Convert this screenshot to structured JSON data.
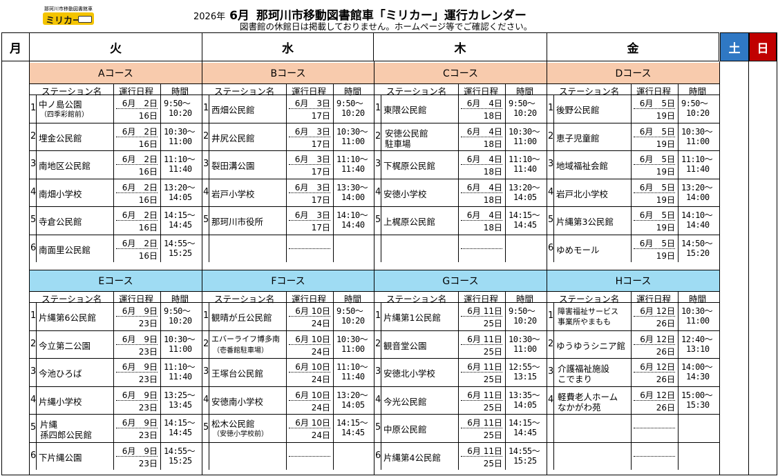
{
  "header": {
    "logo_sub": "那珂川市移動図書館車",
    "logo_main": "ミリカー",
    "year": "2026年",
    "month": "6月",
    "title": "那珂川市移動図書館車「ミリカー」運行カレンダー",
    "subtitle": "図書館の休館日は掲載しておりません。ホームページ等でご確認ください。"
  },
  "days": {
    "mon": "月",
    "tue": "火",
    "wed": "水",
    "thu": "木",
    "fri": "金",
    "sat": "土",
    "sun": "日"
  },
  "colors": {
    "sat": "#2f78c4",
    "sun": "#c00000",
    "top_course": "#f8cbad",
    "bottom_course": "#9fdcf3"
  },
  "labels": {
    "station": "ステーション名",
    "schedule": "運行日程",
    "time": "時間"
  },
  "courses": [
    {
      "name": "Aコース",
      "rows": [
        {
          "no": "1",
          "station": "中ノ島公園",
          "note": "（四季彩館前）",
          "d1": "6月　2日",
          "d2": "16日",
          "t1": "9:50～",
          "t2": "10:20"
        },
        {
          "no": "2",
          "station": "埋金公民館",
          "d1": "6月　2日",
          "d2": "16日",
          "t1": "10:30～",
          "t2": "11:00"
        },
        {
          "no": "3",
          "station": "南地区公民館",
          "d1": "6月　2日",
          "d2": "16日",
          "t1": "11:10～",
          "t2": "11:40"
        },
        {
          "no": "4",
          "station": "南畑小学校",
          "d1": "6月　2日",
          "d2": "16日",
          "t1": "13:20～",
          "t2": "14:05"
        },
        {
          "no": "5",
          "station": "寺倉公民館",
          "d1": "6月　2日",
          "d2": "16日",
          "t1": "14:15～",
          "t2": "14:45"
        },
        {
          "no": "6",
          "station": "南面里公民館",
          "d1": "6月　2日",
          "d2": "16日",
          "t1": "14:55～",
          "t2": "15:25"
        }
      ]
    },
    {
      "name": "Bコース",
      "rows": [
        {
          "no": "1",
          "station": "西畑公民館",
          "d1": "6月　3日",
          "d2": "17日",
          "t1": "9:50～",
          "t2": "10:20"
        },
        {
          "no": "2",
          "station": "井尻公民館",
          "d1": "6月　3日",
          "d2": "17日",
          "t1": "10:30～",
          "t2": "11:00"
        },
        {
          "no": "3",
          "station": "裂田溝公園",
          "d1": "6月　3日",
          "d2": "17日",
          "t1": "11:10～",
          "t2": "11:40"
        },
        {
          "no": "4",
          "station": "岩戸小学校",
          "d1": "6月　3日",
          "d2": "17日",
          "t1": "13:30～",
          "t2": "14:00"
        },
        {
          "no": "5",
          "station": "那珂川市役所",
          "d1": "6月　3日",
          "d2": "17日",
          "t1": "14:10～",
          "t2": "14:40"
        }
      ]
    },
    {
      "name": "Cコース",
      "rows": [
        {
          "no": "1",
          "station": "東隈公民館",
          "d1": "6月　4日",
          "d2": "18日",
          "t1": "9:50～",
          "t2": "10:20"
        },
        {
          "no": "2",
          "station": "安徳公民館",
          "station2": "駐車場",
          "d1": "6月　4日",
          "d2": "18日",
          "t1": "10:30～",
          "t2": "11:00"
        },
        {
          "no": "3",
          "station": "下梶原公民館",
          "d1": "6月　4日",
          "d2": "18日",
          "t1": "11:10～",
          "t2": "11:40"
        },
        {
          "no": "4",
          "station": "安徳小学校",
          "d1": "6月　4日",
          "d2": "18日",
          "t1": "13:20～",
          "t2": "14:05"
        },
        {
          "no": "5",
          "station": "上梶原公民館",
          "d1": "6月　4日",
          "d2": "18日",
          "t1": "14:15～",
          "t2": "14:45"
        }
      ]
    },
    {
      "name": "Dコース",
      "rows": [
        {
          "no": "1",
          "station": "後野公民館",
          "d1": "6月　5日",
          "d2": "19日",
          "t1": "9:50～",
          "t2": "10:20"
        },
        {
          "no": "2",
          "station": "恵子児童館",
          "d1": "6月　5日",
          "d2": "19日",
          "t1": "10:30～",
          "t2": "11:00"
        },
        {
          "no": "3",
          "station": "地域福祉会館",
          "d1": "6月　5日",
          "d2": "19日",
          "t1": "11:10～",
          "t2": "11:40"
        },
        {
          "no": "4",
          "station": "岩戸北小学校",
          "d1": "6月　5日",
          "d2": "19日",
          "t1": "13:20～",
          "t2": "14:00"
        },
        {
          "no": "5",
          "station": "片縄第3公民館",
          "d1": "6月　5日",
          "d2": "19日",
          "t1": "14:10～",
          "t2": "14:40"
        },
        {
          "no": "6",
          "station": "ゆめモール",
          "d1": "6月　5日",
          "d2": "19日",
          "t1": "14:50～",
          "t2": "15:20"
        }
      ]
    },
    {
      "name": "Eコース",
      "rows": [
        {
          "no": "1",
          "station": "片縄第6公民館",
          "d1": "6月　9日",
          "d2": "23日",
          "t1": "9:50～",
          "t2": "10:20"
        },
        {
          "no": "2",
          "station": "今立第二公園",
          "d1": "6月　9日",
          "d2": "23日",
          "t1": "10:30～",
          "t2": "11:00"
        },
        {
          "no": "3",
          "station": "今池ひろば",
          "d1": "6月　9日",
          "d2": "23日",
          "t1": "11:10～",
          "t2": "11:40"
        },
        {
          "no": "4",
          "station": "片縄小学校",
          "d1": "6月　9日",
          "d2": "23日",
          "t1": "13:25～",
          "t2": "13:45"
        },
        {
          "no": "5",
          "station": "片縄",
          "station2": "孫四郎公民館",
          "d1": "6月　9日",
          "d2": "23日",
          "t1": "14:15～",
          "t2": "14:45"
        },
        {
          "no": "6",
          "station": "下片縄公園",
          "d1": "6月　9日",
          "d2": "23日",
          "t1": "14:55～",
          "t2": "15:25"
        }
      ]
    },
    {
      "name": "Fコース",
      "rows": [
        {
          "no": "1",
          "station": "観晴が丘公民館",
          "d1": "6月 10日",
          "d2": "24日",
          "t1": "9:50～",
          "t2": "10:20"
        },
        {
          "no": "2",
          "station": "エバーライフ博多南",
          "note": "（壱番館駐車場）",
          "d1": "6月 10日",
          "d2": "24日",
          "t1": "10:30～",
          "t2": "11:00"
        },
        {
          "no": "3",
          "station": "王塚台公民館",
          "d1": "6月 10日",
          "d2": "24日",
          "t1": "11:10～",
          "t2": "11:40"
        },
        {
          "no": "4",
          "station": "安徳南小学校",
          "d1": "6月 10日",
          "d2": "24日",
          "t1": "13:20～",
          "t2": "14:05"
        },
        {
          "no": "5",
          "station": "松木公民館",
          "note": "（安徳小学校前）",
          "d1": "6月 10日",
          "d2": "24日",
          "t1": "14:15～",
          "t2": "14:45"
        }
      ]
    },
    {
      "name": "Gコース",
      "rows": [
        {
          "no": "1",
          "station": "片縄第1公民館",
          "d1": "6月 11日",
          "d2": "25日",
          "t1": "9:50～",
          "t2": "10:20"
        },
        {
          "no": "2",
          "station": "観音堂公園",
          "d1": "6月 11日",
          "d2": "25日",
          "t1": "10:30～",
          "t2": "11:00"
        },
        {
          "no": "3",
          "station": "安徳北小学校",
          "d1": "6月 11日",
          "d2": "25日",
          "t1": "12:55～",
          "t2": "13:15"
        },
        {
          "no": "4",
          "station": "今光公民館",
          "d1": "6月 11日",
          "d2": "25日",
          "t1": "13:35～",
          "t2": "14:05"
        },
        {
          "no": "5",
          "station": "中原公民館",
          "d1": "6月 11日",
          "d2": "25日",
          "t1": "14:15～",
          "t2": "14:45"
        },
        {
          "no": "6",
          "station": "片縄第4公民館",
          "d1": "6月 11日",
          "d2": "25日",
          "t1": "14:55～",
          "t2": "15:25"
        }
      ]
    },
    {
      "name": "Hコース",
      "rows": [
        {
          "no": "1",
          "station": "障害福祉サービス",
          "station2": "事業所やまもも",
          "small": true,
          "d1": "6月 12日",
          "d2": "26日",
          "t1": "10:30～",
          "t2": "11:00"
        },
        {
          "no": "2",
          "station": "ゆうゆうシニア館",
          "d1": "6月 12日",
          "d2": "26日",
          "t1": "12:40～",
          "t2": "13:10"
        },
        {
          "no": "3",
          "station": "介護福祉施設",
          "station2": "こでまり",
          "d1": "6月 12日",
          "d2": "26日",
          "t1": "14:00～",
          "t2": "14:30"
        },
        {
          "no": "4",
          "station": "軽費老人ホーム",
          "station2": "なかがわ苑",
          "d1": "6月 12日",
          "d2": "26日",
          "t1": "15:00～",
          "t2": "15:30"
        }
      ]
    }
  ]
}
